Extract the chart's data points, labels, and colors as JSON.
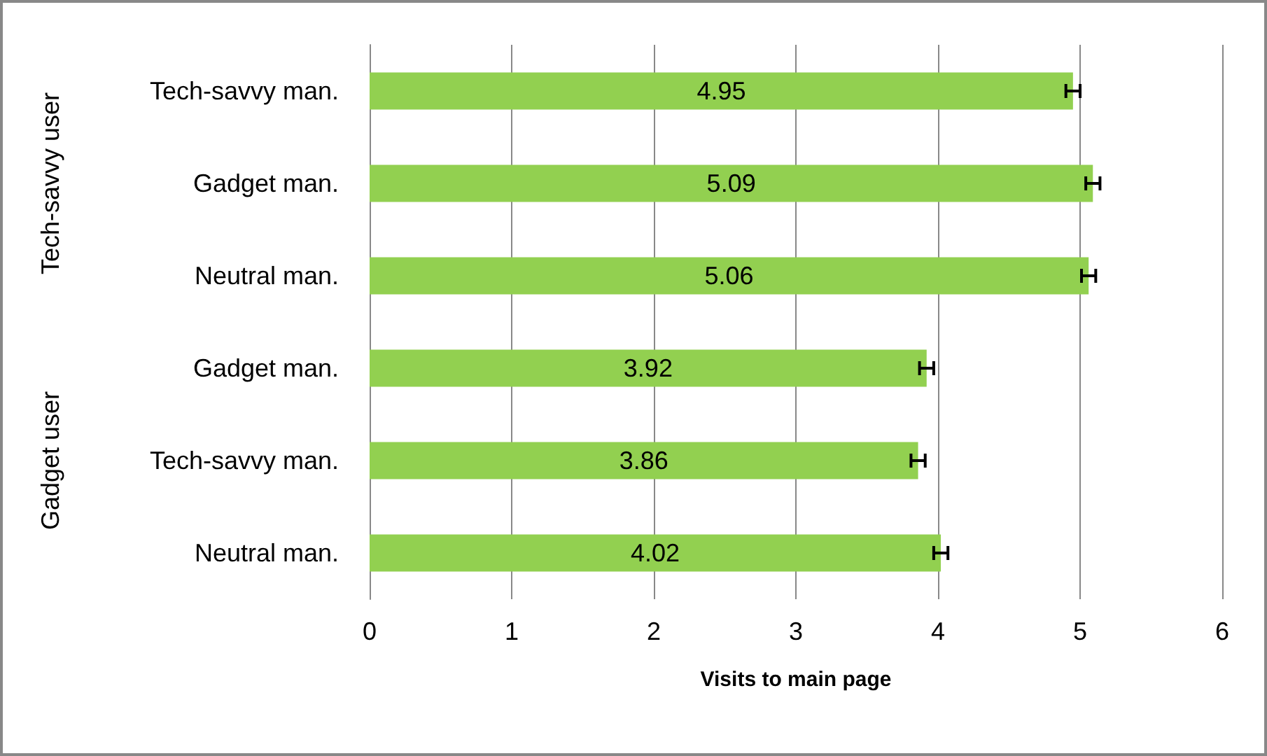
{
  "chart_data": {
    "type": "bar",
    "orientation": "horizontal",
    "xlabel": "Visits to main page",
    "categories": [
      "Tech-savvy man.",
      "Gadget man.",
      "Neutral man.",
      "Gadget man.",
      "Tech-savvy man.",
      "Neutral man."
    ],
    "values": [
      4.95,
      5.09,
      5.06,
      3.92,
      3.86,
      4.02
    ],
    "errors": [
      0.05,
      0.05,
      0.05,
      0.05,
      0.05,
      0.05
    ],
    "color": "#92d050",
    "data_labels": true,
    "xlim": [
      0,
      6
    ],
    "xticks": [
      0,
      1,
      2,
      3,
      4,
      5,
      6
    ],
    "grid": "x",
    "annotations": [
      "Tech-savvy user",
      "Gadget user"
    ]
  }
}
